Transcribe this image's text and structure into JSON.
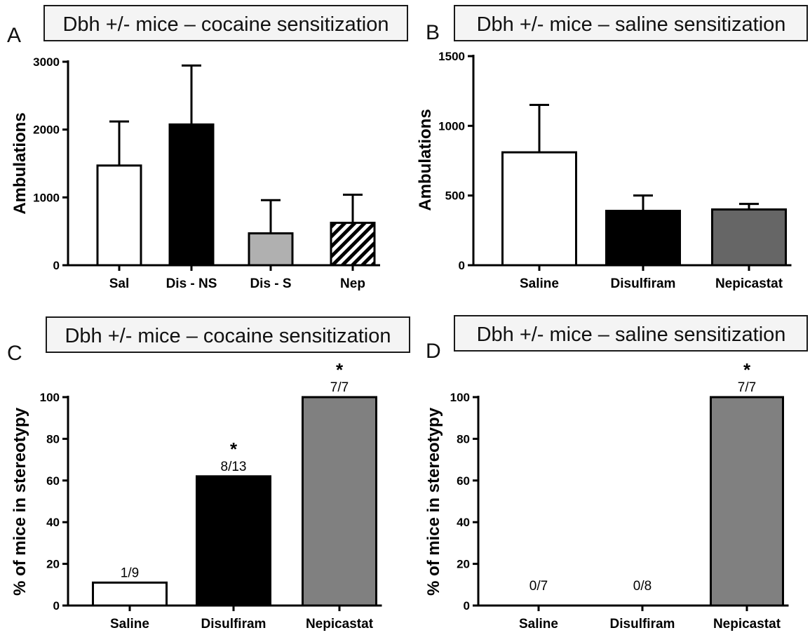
{
  "chart_data": [
    {
      "panel": "A",
      "type": "bar",
      "title": "Dbh +/- mice – cocaine sensitization",
      "ylabel": "Ambulations",
      "xlabel": "",
      "categories": [
        "Sal",
        "Dis - NS",
        "Dis - S",
        "Nep"
      ],
      "values": [
        1470,
        2075,
        470,
        625
      ],
      "errors": [
        650,
        870,
        490,
        415
      ],
      "fills": [
        "#ffffff",
        "#000000",
        "#b0b0b0",
        "hatch"
      ],
      "ylim": [
        0,
        3000
      ],
      "yticks": [
        0,
        1000,
        2000,
        3000
      ],
      "bar_labels": [
        "",
        "",
        "",
        ""
      ],
      "sig_labels": [
        "",
        "",
        "",
        ""
      ]
    },
    {
      "panel": "B",
      "type": "bar",
      "title": "Dbh +/- mice – saline sensitization",
      "ylabel": "Ambulations",
      "xlabel": "",
      "categories": [
        "Saline",
        "Disulfiram",
        "Nepicastat"
      ],
      "values": [
        810,
        390,
        400
      ],
      "errors": [
        340,
        110,
        40
      ],
      "fills": [
        "#ffffff",
        "#000000",
        "#666666"
      ],
      "ylim": [
        0,
        1500
      ],
      "yticks": [
        0,
        500,
        1000,
        1500
      ],
      "bar_labels": [
        "",
        "",
        ""
      ],
      "sig_labels": [
        "",
        "",
        ""
      ]
    },
    {
      "panel": "C",
      "type": "bar",
      "title": "Dbh +/- mice – cocaine sensitization",
      "ylabel": "% of mice in stereotypy",
      "xlabel": "",
      "categories": [
        "Saline",
        "Disulfiram",
        "Nepicastat"
      ],
      "values": [
        11,
        62,
        100
      ],
      "errors": [
        0,
        0,
        0
      ],
      "fills": [
        "#ffffff",
        "#000000",
        "#808080"
      ],
      "ylim": [
        0,
        100
      ],
      "yticks": [
        0,
        20,
        40,
        60,
        80,
        100
      ],
      "bar_labels": [
        "1/9",
        "8/13",
        "7/7"
      ],
      "sig_labels": [
        "",
        "*",
        "*"
      ]
    },
    {
      "panel": "D",
      "type": "bar",
      "title": "Dbh +/- mice – saline sensitization",
      "ylabel": "% of mice in stereotypy",
      "xlabel": "",
      "categories": [
        "Saline",
        "Disulfiram",
        "Nepicastat"
      ],
      "values": [
        0,
        0,
        100
      ],
      "errors": [
        0,
        0,
        0
      ],
      "fills": [
        "#ffffff",
        "#000000",
        "#808080"
      ],
      "ylim": [
        0,
        100
      ],
      "yticks": [
        0,
        20,
        40,
        60,
        80,
        100
      ],
      "bar_labels": [
        "0/7",
        "0/8",
        "7/7"
      ],
      "sig_labels": [
        "",
        "",
        "*"
      ]
    }
  ]
}
